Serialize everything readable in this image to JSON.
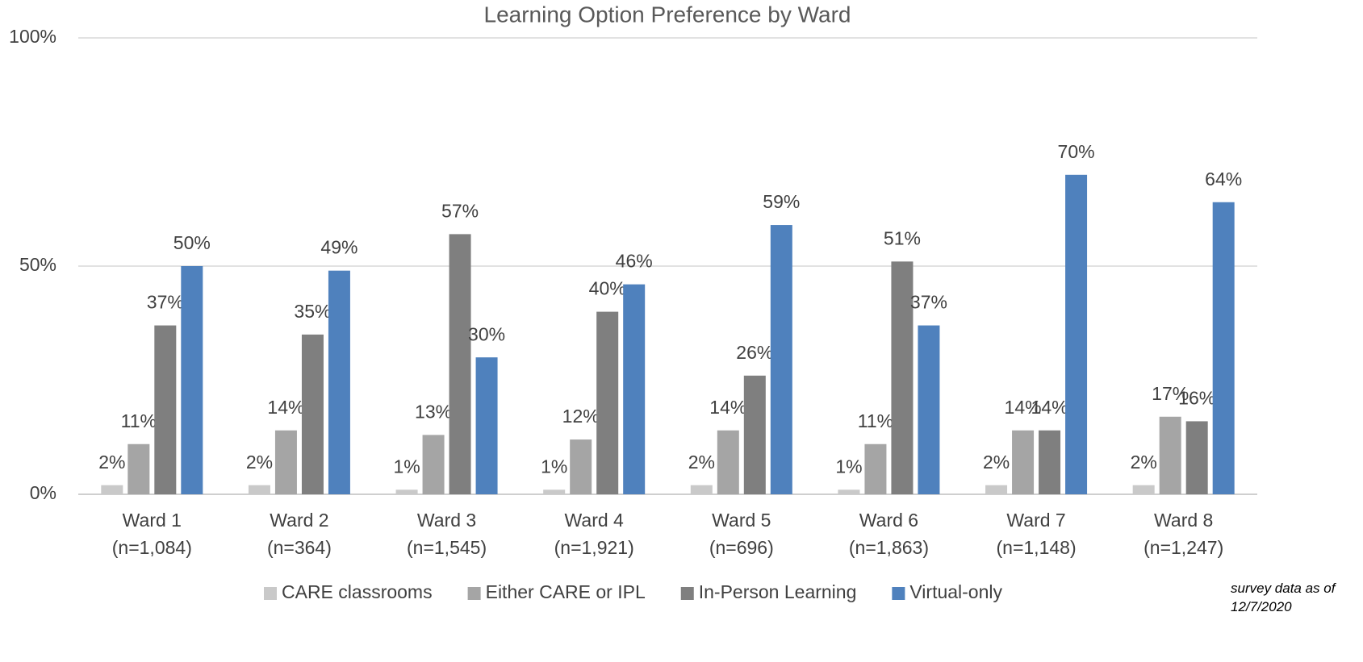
{
  "chart_data": {
    "type": "bar",
    "title": "Learning Option Preference by Ward",
    "categories": [
      [
        "Ward 1",
        "(n=1,084)"
      ],
      [
        "Ward 2",
        "(n=364)"
      ],
      [
        "Ward 3",
        "(n=1,545)"
      ],
      [
        "Ward 4",
        "(n=1,921)"
      ],
      [
        "Ward 5",
        "(n=696)"
      ],
      [
        "Ward 6",
        "(n=1,863)"
      ],
      [
        "Ward 7",
        "(n=1,148)"
      ],
      [
        "Ward 8",
        "(n=1,247)"
      ]
    ],
    "series": [
      {
        "name": "CARE classrooms",
        "color": "#c9c9c9",
        "values": [
          2,
          2,
          1,
          1,
          2,
          1,
          2,
          2
        ],
        "value_labels": [
          "2%",
          "2%",
          "1%",
          "1%",
          "2%",
          "1%",
          "2%",
          "2%"
        ]
      },
      {
        "name": "Either CARE or IPL",
        "color": "#a5a5a5",
        "values": [
          11,
          14,
          13,
          12,
          14,
          11,
          14,
          17
        ],
        "value_labels": [
          "11%",
          "14%",
          "13%",
          "12%",
          "14%",
          "11%",
          "14%",
          "17%"
        ]
      },
      {
        "name": "In-Person Learning",
        "color": "#7f7f7f",
        "values": [
          37,
          35,
          57,
          40,
          26,
          51,
          14,
          16
        ],
        "value_labels": [
          "37%",
          "35%",
          "57%",
          "40%",
          "26%",
          "51%",
          "14%",
          "16%"
        ]
      },
      {
        "name": "Virtual-only",
        "color": "#4f81bd",
        "values": [
          50,
          49,
          30,
          46,
          59,
          37,
          70,
          64
        ],
        "value_labels": [
          "50%",
          "49%",
          "30%",
          "46%",
          "59%",
          "37%",
          "70%",
          "64%"
        ]
      }
    ],
    "ylim": [
      0,
      100
    ],
    "yticks": [
      {
        "value": 0,
        "label": "0%"
      },
      {
        "value": 50,
        "label": "50%"
      },
      {
        "value": 100,
        "label": "100%"
      }
    ],
    "grid": true,
    "legend": "bottom",
    "annotation": "survey data as of 12/7/2020"
  }
}
